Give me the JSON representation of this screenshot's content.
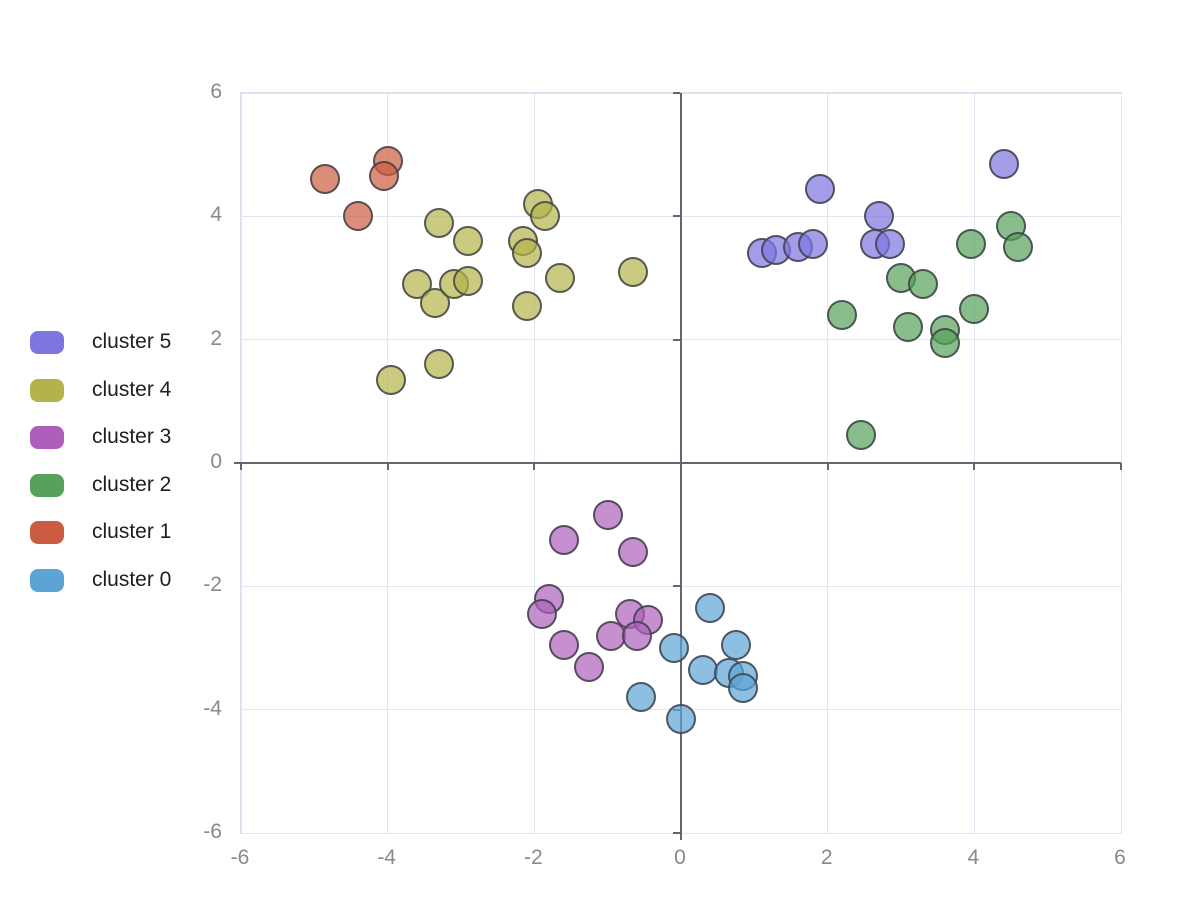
{
  "legend": {
    "items": [
      {
        "label": "cluster 5",
        "color": "#7D75E0"
      },
      {
        "label": "cluster 4",
        "color": "#B3B34C"
      },
      {
        "label": "cluster 3",
        "color": "#AE5FBC"
      },
      {
        "label": "cluster 2",
        "color": "#57A15A"
      },
      {
        "label": "cluster 1",
        "color": "#CC5C41"
      },
      {
        "label": "cluster 0",
        "color": "#5CA4D6"
      }
    ]
  },
  "chart_data": {
    "type": "scatter",
    "title": "",
    "xlabel": "",
    "ylabel": "",
    "xlim": [
      -6,
      6
    ],
    "ylim": [
      -6,
      6
    ],
    "x_ticks": [
      -6,
      -4,
      -2,
      0,
      2,
      4,
      6
    ],
    "y_ticks": [
      6,
      4,
      2,
      0,
      -2,
      -4,
      -6
    ],
    "x_tick_labels": [
      "-6",
      "-4",
      "-2",
      "0",
      "2",
      "4",
      "6"
    ],
    "y_tick_labels": [
      "6",
      "4",
      "2",
      "0",
      "-2",
      "-4",
      "-6"
    ],
    "grid": true,
    "zero_axes": true,
    "legend_position": "left",
    "marker_opacity": 0.7,
    "series": [
      {
        "name": "cluster 5",
        "color": "#7D75E0",
        "points": [
          [
            1.1,
            3.4
          ],
          [
            1.3,
            3.45
          ],
          [
            1.6,
            3.5
          ],
          [
            1.8,
            3.55
          ],
          [
            1.9,
            4.45
          ],
          [
            2.65,
            3.55
          ],
          [
            2.85,
            3.55
          ],
          [
            2.7,
            4.0
          ],
          [
            4.4,
            4.85
          ]
        ]
      },
      {
        "name": "cluster 4",
        "color": "#B3B34C",
        "points": [
          [
            -3.95,
            1.35
          ],
          [
            -3.3,
            1.6
          ],
          [
            -3.6,
            2.9
          ],
          [
            -3.35,
            2.6
          ],
          [
            -3.1,
            2.9
          ],
          [
            -2.9,
            2.95
          ],
          [
            -3.3,
            3.9
          ],
          [
            -2.9,
            3.6
          ],
          [
            -2.15,
            3.6
          ],
          [
            -2.1,
            3.4
          ],
          [
            -2.1,
            2.55
          ],
          [
            -1.95,
            4.2
          ],
          [
            -1.85,
            4.0
          ],
          [
            -1.65,
            3.0
          ],
          [
            -0.65,
            3.1
          ]
        ]
      },
      {
        "name": "cluster 3",
        "color": "#AE5FBC",
        "points": [
          [
            -1.0,
            -0.85
          ],
          [
            -1.6,
            -1.25
          ],
          [
            -0.65,
            -1.45
          ],
          [
            -1.8,
            -2.2
          ],
          [
            -1.9,
            -2.45
          ],
          [
            -1.6,
            -2.95
          ],
          [
            -1.25,
            -3.3
          ],
          [
            -0.95,
            -2.8
          ],
          [
            -0.7,
            -2.45
          ],
          [
            -0.45,
            -2.55
          ],
          [
            -0.6,
            -2.8
          ]
        ]
      },
      {
        "name": "cluster 2",
        "color": "#57A15A",
        "points": [
          [
            4.5,
            3.85
          ],
          [
            4.6,
            3.5
          ],
          [
            3.95,
            3.55
          ],
          [
            3.0,
            3.0
          ],
          [
            3.3,
            2.9
          ],
          [
            4.0,
            2.5
          ],
          [
            2.2,
            2.4
          ],
          [
            3.1,
            2.2
          ],
          [
            3.6,
            2.15
          ],
          [
            3.6,
            1.95
          ],
          [
            2.45,
            0.45
          ]
        ]
      },
      {
        "name": "cluster 1",
        "color": "#CC5C41",
        "points": [
          [
            -4.85,
            4.6
          ],
          [
            -4.0,
            4.9
          ],
          [
            -4.05,
            4.65
          ],
          [
            -4.4,
            4.0
          ]
        ]
      },
      {
        "name": "cluster 0",
        "color": "#5CA4D6",
        "points": [
          [
            0.4,
            -2.35
          ],
          [
            -0.1,
            -3.0
          ],
          [
            0.75,
            -2.95
          ],
          [
            0.3,
            -3.35
          ],
          [
            0.65,
            -3.4
          ],
          [
            0.85,
            -3.45
          ],
          [
            0.85,
            -3.65
          ],
          [
            -0.55,
            -3.8
          ],
          [
            0.0,
            -4.15
          ]
        ]
      }
    ]
  },
  "colors": {
    "grid": "#e2e6f3",
    "plot_border": "#dce0ee",
    "zero_axis": "#63666e",
    "tick_label": "#87898f",
    "legend_text": "#1d1e20",
    "marker_stroke_rgba": "rgba(58,61,67,0.8)"
  }
}
